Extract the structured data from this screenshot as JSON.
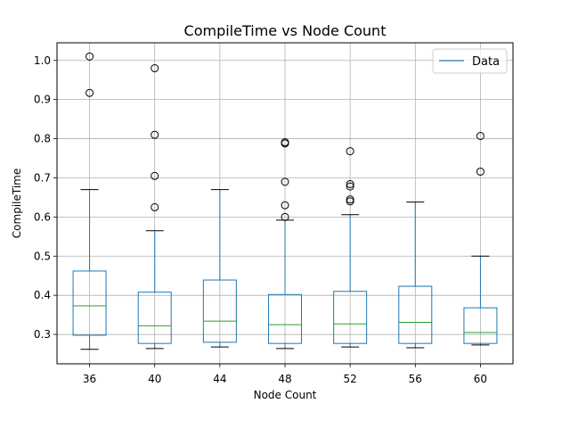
{
  "chart_data": {
    "type": "box",
    "title": "CompileTime vs Node Count",
    "xlabel": "Node Count",
    "ylabel": "CompileTime",
    "ylim": [
      0.225,
      1.045
    ],
    "yticks": [
      0.3,
      0.4,
      0.5,
      0.6,
      0.7,
      0.8,
      0.9,
      1.0
    ],
    "ytick_labels": [
      "0.3",
      "0.4",
      "0.5",
      "0.6",
      "0.7",
      "0.8",
      "0.9",
      "1.0"
    ],
    "grid": true,
    "legend": {
      "placement": "top-right",
      "entries": [
        "Data"
      ]
    },
    "colors": {
      "box": "#1f77b4",
      "median": "#2ca02c",
      "whisker_cap": "#000000",
      "grid": "#b0b0b0",
      "frame": "#000000"
    },
    "categories": [
      "36",
      "40",
      "44",
      "48",
      "52",
      "56",
      "60"
    ],
    "boxes": [
      {
        "category": "36",
        "whislo": 0.262,
        "q1": 0.298,
        "med": 0.373,
        "q3": 0.462,
        "whishi": 0.67,
        "fliers": [
          0.917,
          1.01
        ]
      },
      {
        "category": "40",
        "whislo": 0.264,
        "q1": 0.277,
        "med": 0.322,
        "q3": 0.408,
        "whishi": 0.565,
        "fliers": [
          0.625,
          0.705,
          0.81,
          0.98
        ]
      },
      {
        "category": "44",
        "whislo": 0.268,
        "q1": 0.28,
        "med": 0.334,
        "q3": 0.439,
        "whishi": 0.67,
        "fliers": []
      },
      {
        "category": "48",
        "whislo": 0.264,
        "q1": 0.277,
        "med": 0.325,
        "q3": 0.402,
        "whishi": 0.592,
        "fliers": [
          0.6,
          0.63,
          0.69,
          0.788,
          0.791
        ]
      },
      {
        "category": "52",
        "whislo": 0.268,
        "q1": 0.277,
        "med": 0.327,
        "q3": 0.41,
        "whishi": 0.606,
        "fliers": [
          0.64,
          0.645,
          0.678,
          0.684,
          0.768
        ]
      },
      {
        "category": "56",
        "whislo": 0.266,
        "q1": 0.277,
        "med": 0.331,
        "q3": 0.423,
        "whishi": 0.638,
        "fliers": []
      },
      {
        "category": "60",
        "whislo": 0.273,
        "q1": 0.277,
        "med": 0.305,
        "q3": 0.368,
        "whishi": 0.5,
        "fliers": [
          0.716,
          0.807
        ]
      }
    ]
  }
}
